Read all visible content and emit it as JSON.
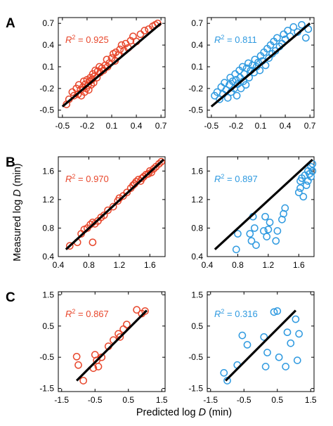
{
  "figure": {
    "ylabel_prefix": "Measured log ",
    "ylabel_var": "D",
    "ylabel_suffix": " (min)",
    "xlabel_prefix": "Predicted log ",
    "xlabel_var": "D",
    "xlabel_suffix": " (min)"
  },
  "colors": {
    "red": "#e8472c",
    "blue": "#2f9ae0",
    "fit": "#000000",
    "axis": "#000000"
  },
  "chart_data": [
    {
      "type": "scatter",
      "row_label": "A",
      "color": "red",
      "r2_label": "R",
      "r2_sup": "2",
      "r2_value": " = 0.925",
      "xlim": [
        -0.55,
        0.75
      ],
      "ylim": [
        -0.6,
        0.78
      ],
      "xticks": [
        -0.5,
        -0.2,
        0.1,
        0.4,
        0.7
      ],
      "xtick_labels": [
        "-0.5",
        "-0.2",
        "0.1",
        "0.4",
        "0.7"
      ],
      "yticks": [
        -0.5,
        -0.2,
        0.1,
        0.4,
        0.7
      ],
      "ytick_labels": [
        "-0.5",
        "-0.2",
        "0.1",
        "0.4",
        "0.7"
      ],
      "fit_line": [
        [
          -0.5,
          -0.45
        ],
        [
          0.7,
          0.7
        ]
      ],
      "points": [
        [
          -0.45,
          -0.42
        ],
        [
          -0.42,
          -0.35
        ],
        [
          -0.38,
          -0.25
        ],
        [
          -0.36,
          -0.3
        ],
        [
          -0.33,
          -0.2
        ],
        [
          -0.31,
          -0.28
        ],
        [
          -0.3,
          -0.15
        ],
        [
          -0.28,
          -0.22
        ],
        [
          -0.27,
          -0.3
        ],
        [
          -0.25,
          -0.18
        ],
        [
          -0.24,
          -0.1
        ],
        [
          -0.23,
          -0.25
        ],
        [
          -0.22,
          -0.14
        ],
        [
          -0.21,
          -0.2
        ],
        [
          -0.2,
          -0.08
        ],
        [
          -0.19,
          -0.16
        ],
        [
          -0.18,
          -0.22
        ],
        [
          -0.17,
          -0.1
        ],
        [
          -0.16,
          -0.05
        ],
        [
          -0.15,
          -0.15
        ],
        [
          -0.14,
          -0.08
        ],
        [
          -0.13,
          0.0
        ],
        [
          -0.12,
          -0.12
        ],
        [
          -0.11,
          -0.03
        ],
        [
          -0.1,
          0.05
        ],
        [
          -0.08,
          -0.05
        ],
        [
          -0.07,
          0.04
        ],
        [
          -0.05,
          0.1
        ],
        [
          -0.04,
          0.02
        ],
        [
          -0.02,
          0.08
        ],
        [
          0.0,
          0.05
        ],
        [
          0.02,
          0.12
        ],
        [
          0.04,
          0.2
        ],
        [
          0.05,
          0.1
        ],
        [
          0.07,
          0.15
        ],
        [
          0.1,
          0.22
        ],
        [
          0.12,
          0.28
        ],
        [
          0.14,
          0.18
        ],
        [
          0.15,
          0.3
        ],
        [
          0.18,
          0.26
        ],
        [
          0.2,
          0.34
        ],
        [
          0.22,
          0.4
        ],
        [
          0.25,
          0.32
        ],
        [
          0.27,
          0.42
        ],
        [
          0.3,
          0.36
        ],
        [
          0.33,
          0.46
        ],
        [
          0.36,
          0.52
        ],
        [
          0.4,
          0.45
        ],
        [
          0.45,
          0.55
        ],
        [
          0.5,
          0.6
        ],
        [
          0.55,
          0.62
        ],
        [
          0.6,
          0.66
        ],
        [
          0.63,
          0.68
        ],
        [
          0.66,
          0.7
        ]
      ]
    },
    {
      "type": "scatter",
      "row_label": "",
      "color": "blue",
      "r2_label": "R",
      "r2_sup": "2",
      "r2_value": " = 0.811",
      "xlim": [
        -0.55,
        0.75
      ],
      "ylim": [
        -0.6,
        0.78
      ],
      "xticks": [
        -0.5,
        -0.2,
        0.1,
        0.4,
        0.7
      ],
      "xtick_labels": [
        "-0.5",
        "-0.2",
        "0.1",
        "0.4",
        "0.7"
      ],
      "yticks": [
        -0.5,
        -0.2,
        0.1,
        0.4,
        0.7
      ],
      "ytick_labels": [
        "-0.5",
        "-0.2",
        "0.1",
        "0.4",
        "0.7"
      ],
      "fit_line": [
        [
          -0.5,
          -0.45
        ],
        [
          0.7,
          0.7
        ]
      ],
      "points": [
        [
          -0.46,
          -0.3
        ],
        [
          -0.43,
          -0.25
        ],
        [
          -0.4,
          -0.35
        ],
        [
          -0.38,
          -0.18
        ],
        [
          -0.36,
          -0.28
        ],
        [
          -0.34,
          -0.12
        ],
        [
          -0.32,
          -0.22
        ],
        [
          -0.3,
          -0.33
        ],
        [
          -0.28,
          -0.15
        ],
        [
          -0.27,
          -0.05
        ],
        [
          -0.26,
          -0.25
        ],
        [
          -0.24,
          -0.1
        ],
        [
          -0.22,
          -0.2
        ],
        [
          -0.21,
          0.0
        ],
        [
          -0.2,
          -0.08
        ],
        [
          -0.19,
          -0.3
        ],
        [
          -0.18,
          -0.14
        ],
        [
          -0.16,
          0.05
        ],
        [
          -0.15,
          -0.05
        ],
        [
          -0.14,
          -0.2
        ],
        [
          -0.12,
          0.1
        ],
        [
          -0.11,
          -0.1
        ],
        [
          -0.1,
          0.0
        ],
        [
          -0.08,
          -0.15
        ],
        [
          -0.07,
          0.08
        ],
        [
          -0.05,
          0.15
        ],
        [
          -0.04,
          -0.05
        ],
        [
          -0.02,
          0.05
        ],
        [
          0.0,
          0.12
        ],
        [
          0.02,
          0.02
        ],
        [
          0.03,
          0.2
        ],
        [
          0.05,
          0.1
        ],
        [
          0.07,
          0.16
        ],
        [
          0.09,
          0.05
        ],
        [
          0.1,
          0.25
        ],
        [
          0.12,
          0.18
        ],
        [
          0.14,
          0.3
        ],
        [
          0.16,
          0.12
        ],
        [
          0.18,
          0.35
        ],
        [
          0.2,
          0.22
        ],
        [
          0.22,
          0.4
        ],
        [
          0.24,
          0.28
        ],
        [
          0.26,
          0.45
        ],
        [
          0.28,
          0.32
        ],
        [
          0.3,
          0.5
        ],
        [
          0.33,
          0.38
        ],
        [
          0.36,
          0.42
        ],
        [
          0.38,
          0.55
        ],
        [
          0.4,
          0.48
        ],
        [
          0.43,
          0.6
        ],
        [
          0.46,
          0.52
        ],
        [
          0.5,
          0.65
        ],
        [
          0.55,
          0.58
        ],
        [
          0.6,
          0.68
        ],
        [
          0.65,
          0.5
        ],
        [
          0.68,
          0.62
        ]
      ]
    },
    {
      "type": "scatter",
      "row_label": "B",
      "color": "red",
      "r2_label": "R",
      "r2_sup": "2",
      "r2_value": " = 0.970",
      "xlim": [
        0.4,
        1.8
      ],
      "ylim": [
        0.4,
        1.8
      ],
      "xticks": [
        0.4,
        0.8,
        1.2,
        1.6
      ],
      "xtick_labels": [
        "0.4",
        "0.8",
        "1.2",
        "1.6"
      ],
      "yticks": [
        0.4,
        0.8,
        1.2,
        1.6
      ],
      "ytick_labels": [
        "0.4",
        "0.8",
        "1.2",
        "1.6"
      ],
      "fit_line": [
        [
          0.5,
          0.5
        ],
        [
          1.78,
          1.76
        ]
      ],
      "points": [
        [
          0.55,
          0.55
        ],
        [
          0.65,
          0.6
        ],
        [
          0.7,
          0.72
        ],
        [
          0.74,
          0.78
        ],
        [
          0.78,
          0.8
        ],
        [
          0.82,
          0.85
        ],
        [
          0.85,
          0.88
        ],
        [
          0.88,
          0.86
        ],
        [
          0.92,
          0.9
        ],
        [
          0.96,
          0.95
        ],
        [
          1.0,
          0.98
        ],
        [
          1.05,
          1.05
        ],
        [
          1.12,
          1.1
        ],
        [
          1.18,
          1.18
        ],
        [
          1.2,
          1.22
        ],
        [
          1.25,
          1.25
        ],
        [
          1.3,
          1.3
        ],
        [
          1.35,
          1.36
        ],
        [
          1.38,
          1.4
        ],
        [
          1.4,
          1.42
        ],
        [
          1.42,
          1.45
        ],
        [
          1.45,
          1.48
        ],
        [
          1.48,
          1.46
        ],
        [
          1.5,
          1.5
        ],
        [
          1.52,
          1.52
        ],
        [
          1.55,
          1.55
        ],
        [
          1.58,
          1.56
        ],
        [
          1.6,
          1.6
        ],
        [
          1.62,
          1.58
        ],
        [
          1.65,
          1.63
        ],
        [
          1.68,
          1.66
        ],
        [
          1.72,
          1.7
        ],
        [
          1.75,
          1.73
        ],
        [
          0.85,
          0.6
        ]
      ]
    },
    {
      "type": "scatter",
      "row_label": "",
      "color": "blue",
      "r2_label": "R",
      "r2_sup": "2",
      "r2_value": " = 0.897",
      "xlim": [
        0.4,
        1.8
      ],
      "ylim": [
        0.4,
        1.8
      ],
      "xticks": [
        0.4,
        0.8,
        1.2,
        1.6
      ],
      "xtick_labels": [
        "0.4",
        "0.8",
        "1.2",
        "1.6"
      ],
      "yticks": [
        0.4,
        0.8,
        1.2,
        1.6
      ],
      "ytick_labels": [
        "0.4",
        "0.8",
        "1.2",
        "1.6"
      ],
      "fit_line": [
        [
          0.5,
          0.5
        ],
        [
          1.78,
          1.76
        ]
      ],
      "points": [
        [
          0.78,
          0.5
        ],
        [
          0.8,
          0.72
        ],
        [
          0.96,
          0.72
        ],
        [
          0.98,
          0.62
        ],
        [
          1.0,
          0.96
        ],
        [
          1.02,
          0.8
        ],
        [
          1.04,
          0.56
        ],
        [
          1.14,
          0.76
        ],
        [
          1.16,
          0.96
        ],
        [
          1.18,
          0.68
        ],
        [
          1.2,
          0.78
        ],
        [
          1.22,
          0.88
        ],
        [
          1.3,
          0.62
        ],
        [
          1.32,
          0.76
        ],
        [
          1.38,
          0.92
        ],
        [
          1.4,
          1.0
        ],
        [
          1.42,
          1.08
        ],
        [
          1.6,
          1.3
        ],
        [
          1.62,
          1.36
        ],
        [
          1.62,
          1.46
        ],
        [
          1.64,
          1.5
        ],
        [
          1.66,
          1.24
        ],
        [
          1.68,
          1.54
        ],
        [
          1.7,
          1.4
        ],
        [
          1.72,
          1.6
        ],
        [
          1.72,
          1.46
        ],
        [
          1.74,
          1.56
        ],
        [
          1.76,
          1.66
        ],
        [
          1.76,
          1.52
        ],
        [
          1.78,
          1.7
        ],
        [
          1.78,
          1.6
        ]
      ]
    },
    {
      "type": "scatter",
      "row_label": "C",
      "color": "red",
      "r2_label": "R",
      "r2_sup": "2",
      "r2_value": " = 0.867",
      "xlim": [
        -1.6,
        1.6
      ],
      "ylim": [
        -1.6,
        1.6
      ],
      "xticks": [
        -1.5,
        -0.5,
        0.5,
        1.5
      ],
      "xtick_labels": [
        "-1.5",
        "-0.5",
        "0.5",
        "1.5"
      ],
      "yticks": [
        -1.5,
        -0.5,
        0.5,
        1.5
      ],
      "ytick_labels": [
        "-1.5",
        "-0.5",
        "0.5",
        "1.5"
      ],
      "fit_line": [
        [
          -1.05,
          -1.25
        ],
        [
          1.05,
          1.0
        ]
      ],
      "points": [
        [
          -1.05,
          -0.48
        ],
        [
          -1.0,
          -0.75
        ],
        [
          -0.85,
          -1.25
        ],
        [
          -0.55,
          -0.85
        ],
        [
          -0.5,
          -0.42
        ],
        [
          -0.45,
          -0.6
        ],
        [
          -0.4,
          -0.8
        ],
        [
          -0.3,
          -0.5
        ],
        [
          -0.1,
          -0.15
        ],
        [
          0.05,
          0.05
        ],
        [
          0.2,
          0.25
        ],
        [
          0.25,
          0.15
        ],
        [
          0.35,
          0.4
        ],
        [
          0.45,
          0.55
        ],
        [
          0.75,
          1.02
        ],
        [
          0.9,
          0.9
        ],
        [
          1.0,
          0.98
        ]
      ]
    },
    {
      "type": "scatter",
      "row_label": "",
      "color": "blue",
      "r2_label": "R",
      "r2_sup": "2",
      "r2_value": " = 0.316",
      "xlim": [
        -1.6,
        1.6
      ],
      "ylim": [
        -1.6,
        1.6
      ],
      "xticks": [
        -1.5,
        -0.5,
        0.5,
        1.5
      ],
      "xtick_labels": [
        "-1.5",
        "-0.5",
        "0.5",
        "1.5"
      ],
      "yticks": [
        -1.5,
        -0.5,
        0.5,
        1.5
      ],
      "ytick_labels": [
        "-1.5",
        "-0.5",
        "0.5",
        "1.5"
      ],
      "fit_line": [
        [
          -1.05,
          -1.25
        ],
        [
          1.05,
          1.0
        ]
      ],
      "points": [
        [
          -1.1,
          -1.0
        ],
        [
          -1.0,
          -1.25
        ],
        [
          -0.7,
          -0.75
        ],
        [
          -0.55,
          0.2
        ],
        [
          -0.4,
          -0.1
        ],
        [
          0.1,
          0.15
        ],
        [
          0.15,
          -0.8
        ],
        [
          0.2,
          -0.35
        ],
        [
          0.4,
          0.95
        ],
        [
          0.5,
          0.98
        ],
        [
          0.55,
          -0.5
        ],
        [
          0.75,
          -0.8
        ],
        [
          0.8,
          0.3
        ],
        [
          0.9,
          -0.05
        ],
        [
          1.05,
          0.72
        ],
        [
          1.1,
          -0.6
        ],
        [
          1.15,
          0.25
        ]
      ]
    }
  ]
}
